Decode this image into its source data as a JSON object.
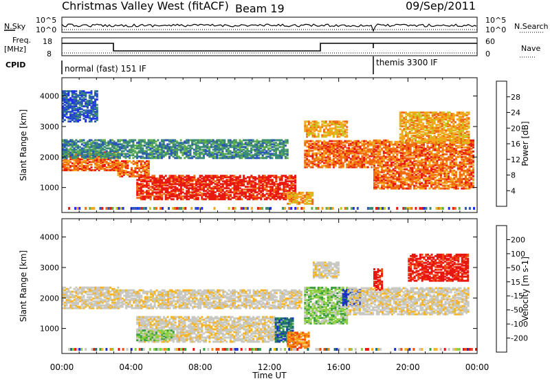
{
  "header": {
    "title": "Christmas Valley West (fitACF)",
    "beam": "Beam 19",
    "date": "09/Sep/2011"
  },
  "strips": {
    "nsky_label": "N.Sky",
    "nsky_ticks": [
      "10^5",
      "10^0"
    ],
    "nsearch_label": "N.Search",
    "freq_label_1": "Freq.",
    "freq_label_2": "[MHz]",
    "freq_ticks": [
      "18",
      "8"
    ],
    "nave_label": "Nave",
    "nave_ticks": [
      "60",
      "0"
    ],
    "cpid_label": "CPID",
    "cpid_modes": [
      {
        "label": "normal (fast) 151 IF",
        "start_hour": 0
      },
      {
        "label": "themis 3300 IF",
        "start_hour": 18
      }
    ]
  },
  "colors": {
    "power_scale": [
      "#1f2ff0",
      "#2a55b8",
      "#3b8a78",
      "#5fb04a",
      "#c8c61e",
      "#f5a51a",
      "#f06a10",
      "#e81a10"
    ],
    "velocity_scale": [
      "#e81410",
      "#f04a10",
      "#f58a10",
      "#f5b420",
      "#c8c8c0",
      "#c8c8c0",
      "#8cd040",
      "#3ca040",
      "#1e6e6e",
      "#1a2ec8"
    ]
  },
  "chart_data": [
    {
      "type": "heatmap",
      "name": "power-panel",
      "ylabel": "Slant Range [km]",
      "xlabel": "Time UT",
      "x_ticks": [
        "00:00",
        "04:00",
        "08:00",
        "12:00",
        "16:00",
        "20:00",
        "00:00"
      ],
      "y_ticks": [
        1000,
        2000,
        3000,
        4000
      ],
      "xlim": [
        0,
        24
      ],
      "ylim": [
        180,
        4600
      ],
      "colorbar_label": "Power [dB]",
      "colorbar_ticks": [
        "28",
        "24",
        "20",
        "16",
        "12",
        "8",
        "4"
      ],
      "regions": [
        {
          "t0": 0.0,
          "t1": 3.2,
          "r0": 1600,
          "r1": 2200,
          "level": 6
        },
        {
          "t0": 3.2,
          "t1": 5.0,
          "r0": 1400,
          "r1": 1900,
          "level": 6
        },
        {
          "t0": 4.3,
          "t1": 13.5,
          "r0": 650,
          "r1": 1450,
          "level": 7
        },
        {
          "t0": 13.0,
          "t1": 14.5,
          "r0": 500,
          "r1": 900,
          "level": 5
        },
        {
          "t0": 14.0,
          "t1": 18.0,
          "r0": 1700,
          "r1": 2600,
          "level": 6
        },
        {
          "t0": 14.0,
          "t1": 16.5,
          "r0": 2700,
          "r1": 3200,
          "level": 5
        },
        {
          "t0": 18.0,
          "t1": 23.8,
          "r0": 1000,
          "r1": 2600,
          "level": 6
        },
        {
          "t0": 19.5,
          "t1": 23.5,
          "r0": 2500,
          "r1": 3500,
          "level": 5
        },
        {
          "t0": 0.0,
          "t1": 13.0,
          "r0": 2000,
          "r1": 2600,
          "level": 2
        },
        {
          "t0": 0.0,
          "t1": 2.0,
          "r0": 3200,
          "r1": 4200,
          "level": 1
        }
      ]
    },
    {
      "type": "heatmap",
      "name": "velocity-panel",
      "ylabel": "Slant Range [km]",
      "xlabel": "Time UT",
      "x_ticks": [
        "00:00",
        "04:00",
        "08:00",
        "12:00",
        "16:00",
        "20:00",
        "00:00"
      ],
      "y_ticks": [
        1000,
        2000,
        3000,
        4000
      ],
      "xlim": [
        0,
        24
      ],
      "ylim": [
        180,
        4600
      ],
      "colorbar_label": "Velocity [m s-1]",
      "colorbar_ticks": [
        "200",
        "100",
        "50",
        "15",
        "-15",
        "-50",
        "-100",
        "-200"
      ],
      "regions": [
        {
          "t0": 0.0,
          "t1": 3.2,
          "r0": 1700,
          "r1": 2400,
          "level": 4
        },
        {
          "t0": 3.0,
          "t1": 13.8,
          "r0": 1700,
          "r1": 2300,
          "level": 4
        },
        {
          "t0": 4.3,
          "t1": 12.5,
          "r0": 600,
          "r1": 1450,
          "level": 4
        },
        {
          "t0": 4.3,
          "t1": 6.5,
          "r0": 650,
          "r1": 1000,
          "level": 6
        },
        {
          "t0": 12.3,
          "t1": 13.3,
          "r0": 600,
          "r1": 1400,
          "level": 8
        },
        {
          "t0": 13.0,
          "t1": 14.3,
          "r0": 400,
          "r1": 900,
          "level": 2
        },
        {
          "t0": 14.0,
          "t1": 16.5,
          "r0": 1200,
          "r1": 2400,
          "level": 6
        },
        {
          "t0": 16.2,
          "t1": 17.2,
          "r0": 1800,
          "r1": 2300,
          "level": 9
        },
        {
          "t0": 16.5,
          "t1": 23.5,
          "r0": 1500,
          "r1": 2400,
          "level": 4
        },
        {
          "t0": 18.0,
          "t1": 18.5,
          "r0": 2300,
          "r1": 3000,
          "level": 0
        },
        {
          "t0": 20.0,
          "t1": 23.5,
          "r0": 2600,
          "r1": 3500,
          "level": 0
        },
        {
          "t0": 14.5,
          "t1": 16.0,
          "r0": 2700,
          "r1": 3200,
          "level": 4
        }
      ]
    }
  ],
  "axis": {
    "time_label": "Time UT"
  }
}
